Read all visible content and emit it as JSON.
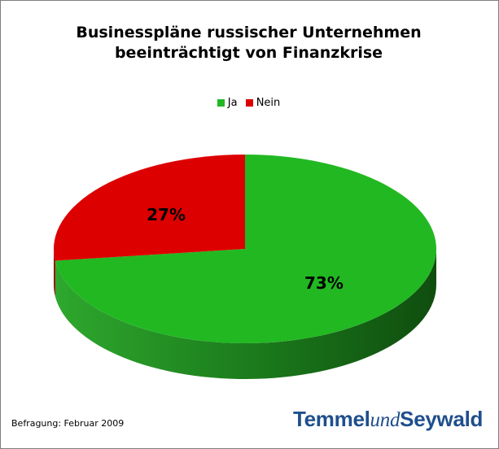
{
  "chart_data": {
    "type": "pie",
    "title_lines": [
      "Businesspläne russischer Unternehmen",
      "beeinträchtigt von Finanzkrise"
    ],
    "legend_position": "top",
    "series": [
      {
        "name": "Ja",
        "value": 73,
        "label": "73%",
        "color": "#22b822",
        "side_color": "#1a7a1a"
      },
      {
        "name": "Nein",
        "value": 27,
        "label": "27%",
        "color": "#dd0000",
        "side_color": "#8c0000"
      }
    ]
  },
  "footnote": "Befragung: Februar 2009",
  "logo": {
    "part1": "Temmel",
    "part2": "und",
    "part3": "Seywald"
  }
}
